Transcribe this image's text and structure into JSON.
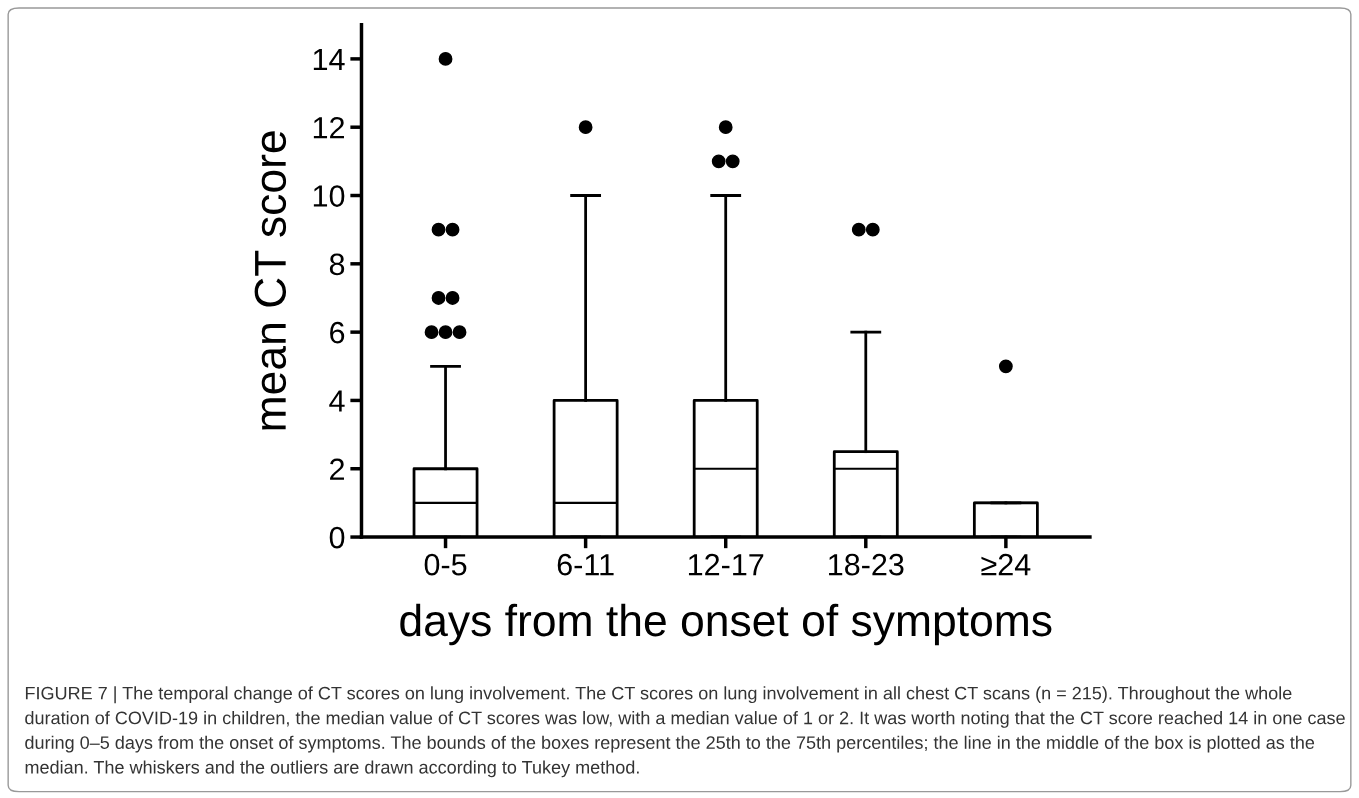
{
  "chart_data": {
    "type": "box",
    "ylabel": "mean CT score",
    "xlabel": "days from the onset of symptoms",
    "categories": [
      "0-5",
      "6-11",
      "12-17",
      "18-23",
      "≥24"
    ],
    "boxes": [
      {
        "low": 0,
        "q1": 0,
        "median": 1,
        "q3": 2,
        "high": 5,
        "outliers": [
          6,
          6,
          6,
          7,
          7,
          9,
          9,
          14
        ]
      },
      {
        "low": 0,
        "q1": 0,
        "median": 1,
        "q3": 4,
        "high": 10,
        "outliers": [
          12
        ]
      },
      {
        "low": 0,
        "q1": 0,
        "median": 2,
        "q3": 4,
        "high": 10,
        "outliers": [
          11,
          11,
          12
        ]
      },
      {
        "low": 0,
        "q1": 0,
        "median": 2,
        "q3": 2.5,
        "high": 6,
        "outliers": [
          9,
          9
        ]
      },
      {
        "low": 0,
        "q1": 0,
        "median": 1,
        "q3": 1,
        "high": 1,
        "outliers": [
          5
        ]
      }
    ],
    "color": "#000000",
    "ylim": [
      0,
      15
    ],
    "yticks": [
      0,
      2,
      4,
      6,
      8,
      10,
      12,
      14
    ],
    "grid": false,
    "annotations": [
      "FIGURE 7 | The temporal change of CT scores on lung involvement. The CT scores on lung involvement in all chest CT scans (n = 215). Throughout the whole duration of COVID-19 in children, the median value of CT scores was low, with a median value of 1 or 2. It was worth noting that the CT score reached 14 in one case during 0–5 days from the onset of symptoms. The bounds of the boxes represent the 25th to the 75th percentiles; the line in the middle of the box is plotted as the median. The whiskers and the outliers are drawn according to Tukey method."
    ]
  }
}
